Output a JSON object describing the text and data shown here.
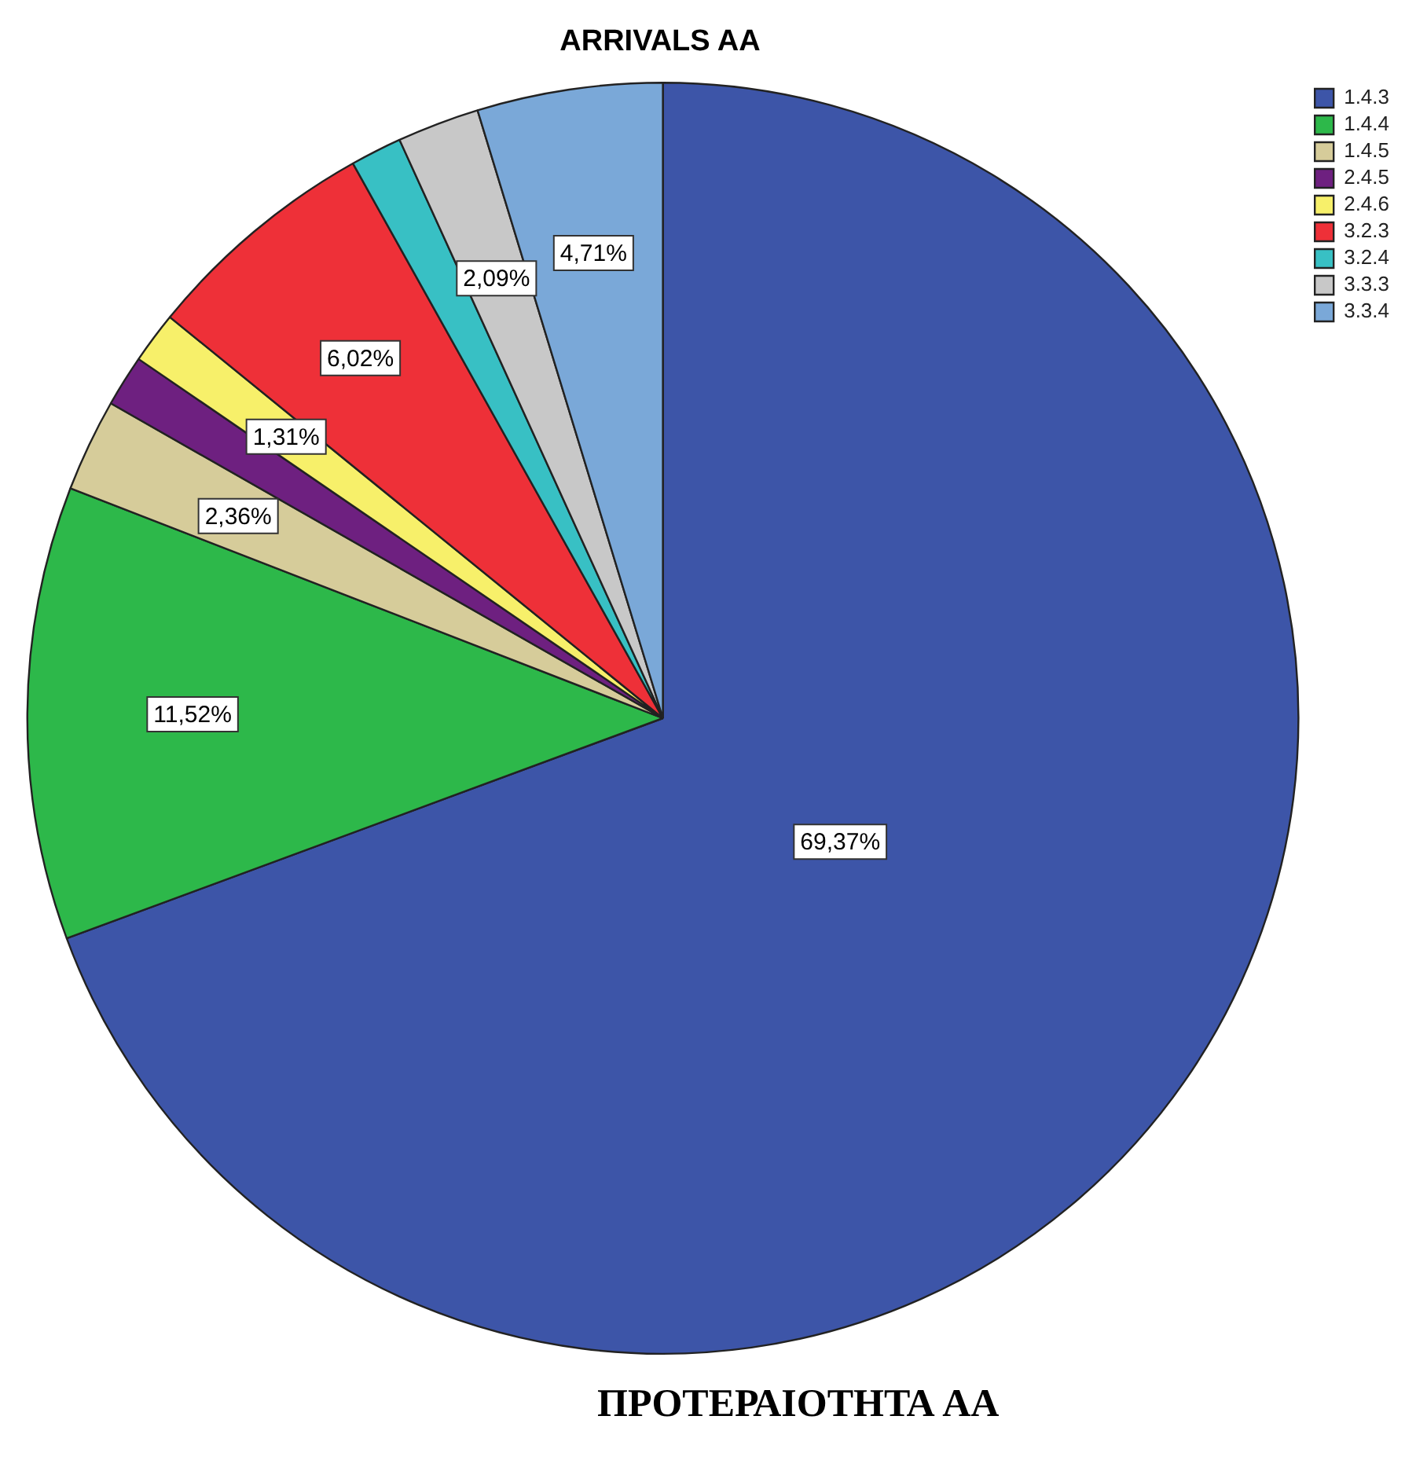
{
  "chart_data": {
    "type": "pie",
    "title": "ARRIVALS AA",
    "categories": [
      "1.4.3",
      "1.4.4",
      "1.4.5",
      "2.4.5",
      "2.4.6",
      "3.2.3",
      "3.2.4",
      "3.3.3",
      "3.3.4"
    ],
    "values": [
      69.37,
      11.52,
      2.36,
      1.31,
      1.31,
      6.02,
      1.31,
      2.09,
      4.71
    ],
    "colors": [
      "#3d55a8",
      "#2db84a",
      "#d6cc9a",
      "#6e2080",
      "#f7f06a",
      "#ee3038",
      "#38c0c4",
      "#c8c8c8",
      "#7aa8d8"
    ],
    "value_labels": [
      "69,37%",
      "11,52%",
      "2,36%",
      null,
      "1,31%",
      "6,02%",
      null,
      "2,09%",
      "4,71%"
    ],
    "legend": "top right",
    "annotations": [
      "ΠΡΟΤΕΡΑΙΟΤΗΤΑ AA"
    ]
  }
}
